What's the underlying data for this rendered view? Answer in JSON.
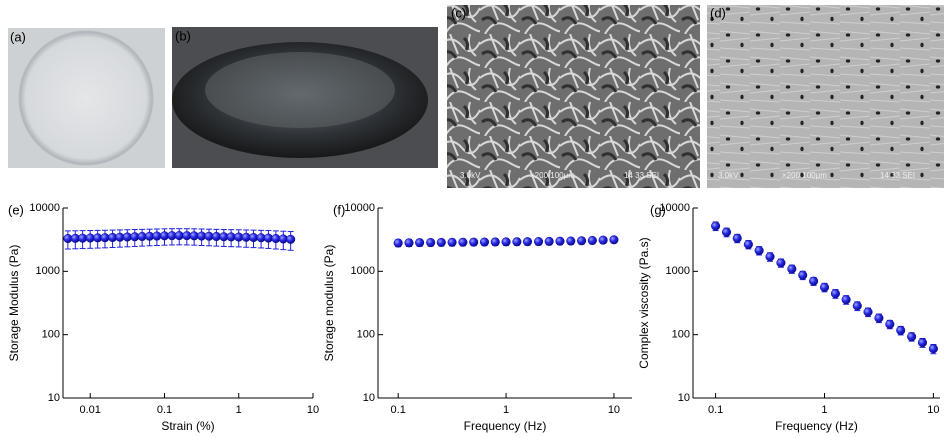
{
  "panel_labels": [
    "(a)",
    "(b)",
    "(c)",
    "(d)"
  ],
  "sem_labels": [
    {
      "voltage": "3.0kV",
      "scale": "×200 100μm",
      "code": "14 33 SEI"
    },
    {
      "voltage": "3.0kV",
      "scale": "×200 100μm",
      "code": "14 33 SEI"
    }
  ],
  "chart_data": [
    {
      "type": "scatter",
      "panel_label": "(e)",
      "x_label": "Strain (%)",
      "y_label": "Storage Modulus (Pa)",
      "log_x": true,
      "log_y": true,
      "color": "#1f1fe0",
      "x": [
        0.005,
        0.0063,
        0.0079,
        0.01,
        0.0126,
        0.0158,
        0.02,
        0.0251,
        0.0316,
        0.0398,
        0.05,
        0.063,
        0.079,
        0.1,
        0.126,
        0.158,
        0.2,
        0.251,
        0.316,
        0.398,
        0.5,
        0.63,
        0.79,
        1,
        1.26,
        1.58,
        2,
        2.51,
        3.16,
        3.98,
        5
      ],
      "values": [
        3300,
        3320,
        3340,
        3360,
        3380,
        3400,
        3430,
        3460,
        3490,
        3520,
        3550,
        3580,
        3610,
        3640,
        3660,
        3670,
        3660,
        3640,
        3610,
        3580,
        3550,
        3520,
        3500,
        3480,
        3450,
        3420,
        3390,
        3350,
        3300,
        3250,
        3200
      ],
      "errors": [
        1050,
        1050,
        1050,
        1050,
        1050,
        1050,
        1050,
        1050,
        1050,
        1050,
        1050,
        1050,
        1050,
        1050,
        1050,
        1050,
        1050,
        1050,
        1050,
        1050,
        1050,
        1050,
        1050,
        1050,
        1050,
        1050,
        1050,
        1050,
        1050,
        1050,
        1050
      ],
      "xlim": [
        0.0043,
        10
      ],
      "ylim": [
        10,
        10000
      ],
      "xticks": [
        0.01,
        0.1,
        1,
        10
      ],
      "yticks": [
        10,
        100,
        1000,
        10000
      ]
    },
    {
      "type": "scatter",
      "panel_label": "(f)",
      "x_label": "Frequency (Hz)",
      "y_label": "Storage modulus (Pa)",
      "log_x": true,
      "log_y": true,
      "color": "#1f1fe0",
      "x": [
        0.1,
        0.126,
        0.158,
        0.2,
        0.251,
        0.316,
        0.398,
        0.501,
        0.631,
        0.794,
        1,
        1.26,
        1.58,
        2,
        2.51,
        3.16,
        3.98,
        5.01,
        6.31,
        7.94,
        10
      ],
      "values": [
        2800,
        2820,
        2840,
        2850,
        2860,
        2870,
        2880,
        2890,
        2900,
        2910,
        2920,
        2930,
        2940,
        2950,
        2970,
        2990,
        3010,
        3040,
        3070,
        3110,
        3150
      ],
      "errors": [
        350,
        350,
        350,
        350,
        350,
        350,
        350,
        350,
        350,
        350,
        350,
        350,
        350,
        350,
        350,
        350,
        350,
        350,
        350,
        350,
        350
      ],
      "xlim": [
        0.065,
        14.7
      ],
      "ylim": [
        10,
        10000
      ],
      "xticks": [
        0.1,
        1,
        10
      ],
      "yticks": [
        10,
        100,
        1000,
        10000
      ]
    },
    {
      "type": "scatter",
      "panel_label": "(g)",
      "x_label": "Frequency (Hz)",
      "y_label": "Complex viscosity (Pa.s)",
      "log_x": true,
      "log_y": true,
      "color": "#1f1fe0",
      "x": [
        0.1,
        0.126,
        0.158,
        0.2,
        0.251,
        0.316,
        0.398,
        0.501,
        0.631,
        0.794,
        1,
        1.26,
        1.58,
        2,
        2.51,
        3.16,
        3.98,
        5.01,
        6.31,
        7.94,
        10
      ],
      "values": [
        5200,
        4160,
        3330,
        2660,
        2130,
        1700,
        1360,
        1090,
        870,
        700,
        560,
        445,
        357,
        285,
        228,
        183,
        146,
        117,
        93,
        75,
        60
      ],
      "errors": [
        800,
        650,
        500,
        400,
        320,
        260,
        200,
        160,
        130,
        100,
        85,
        70,
        55,
        45,
        35,
        28,
        22,
        18,
        14,
        12,
        10
      ],
      "xlim": [
        0.062,
        11.5
      ],
      "ylim": [
        10,
        10000
      ],
      "xticks": [
        0.1,
        1,
        10
      ],
      "yticks": [
        10,
        100,
        1000,
        10000
      ]
    }
  ]
}
